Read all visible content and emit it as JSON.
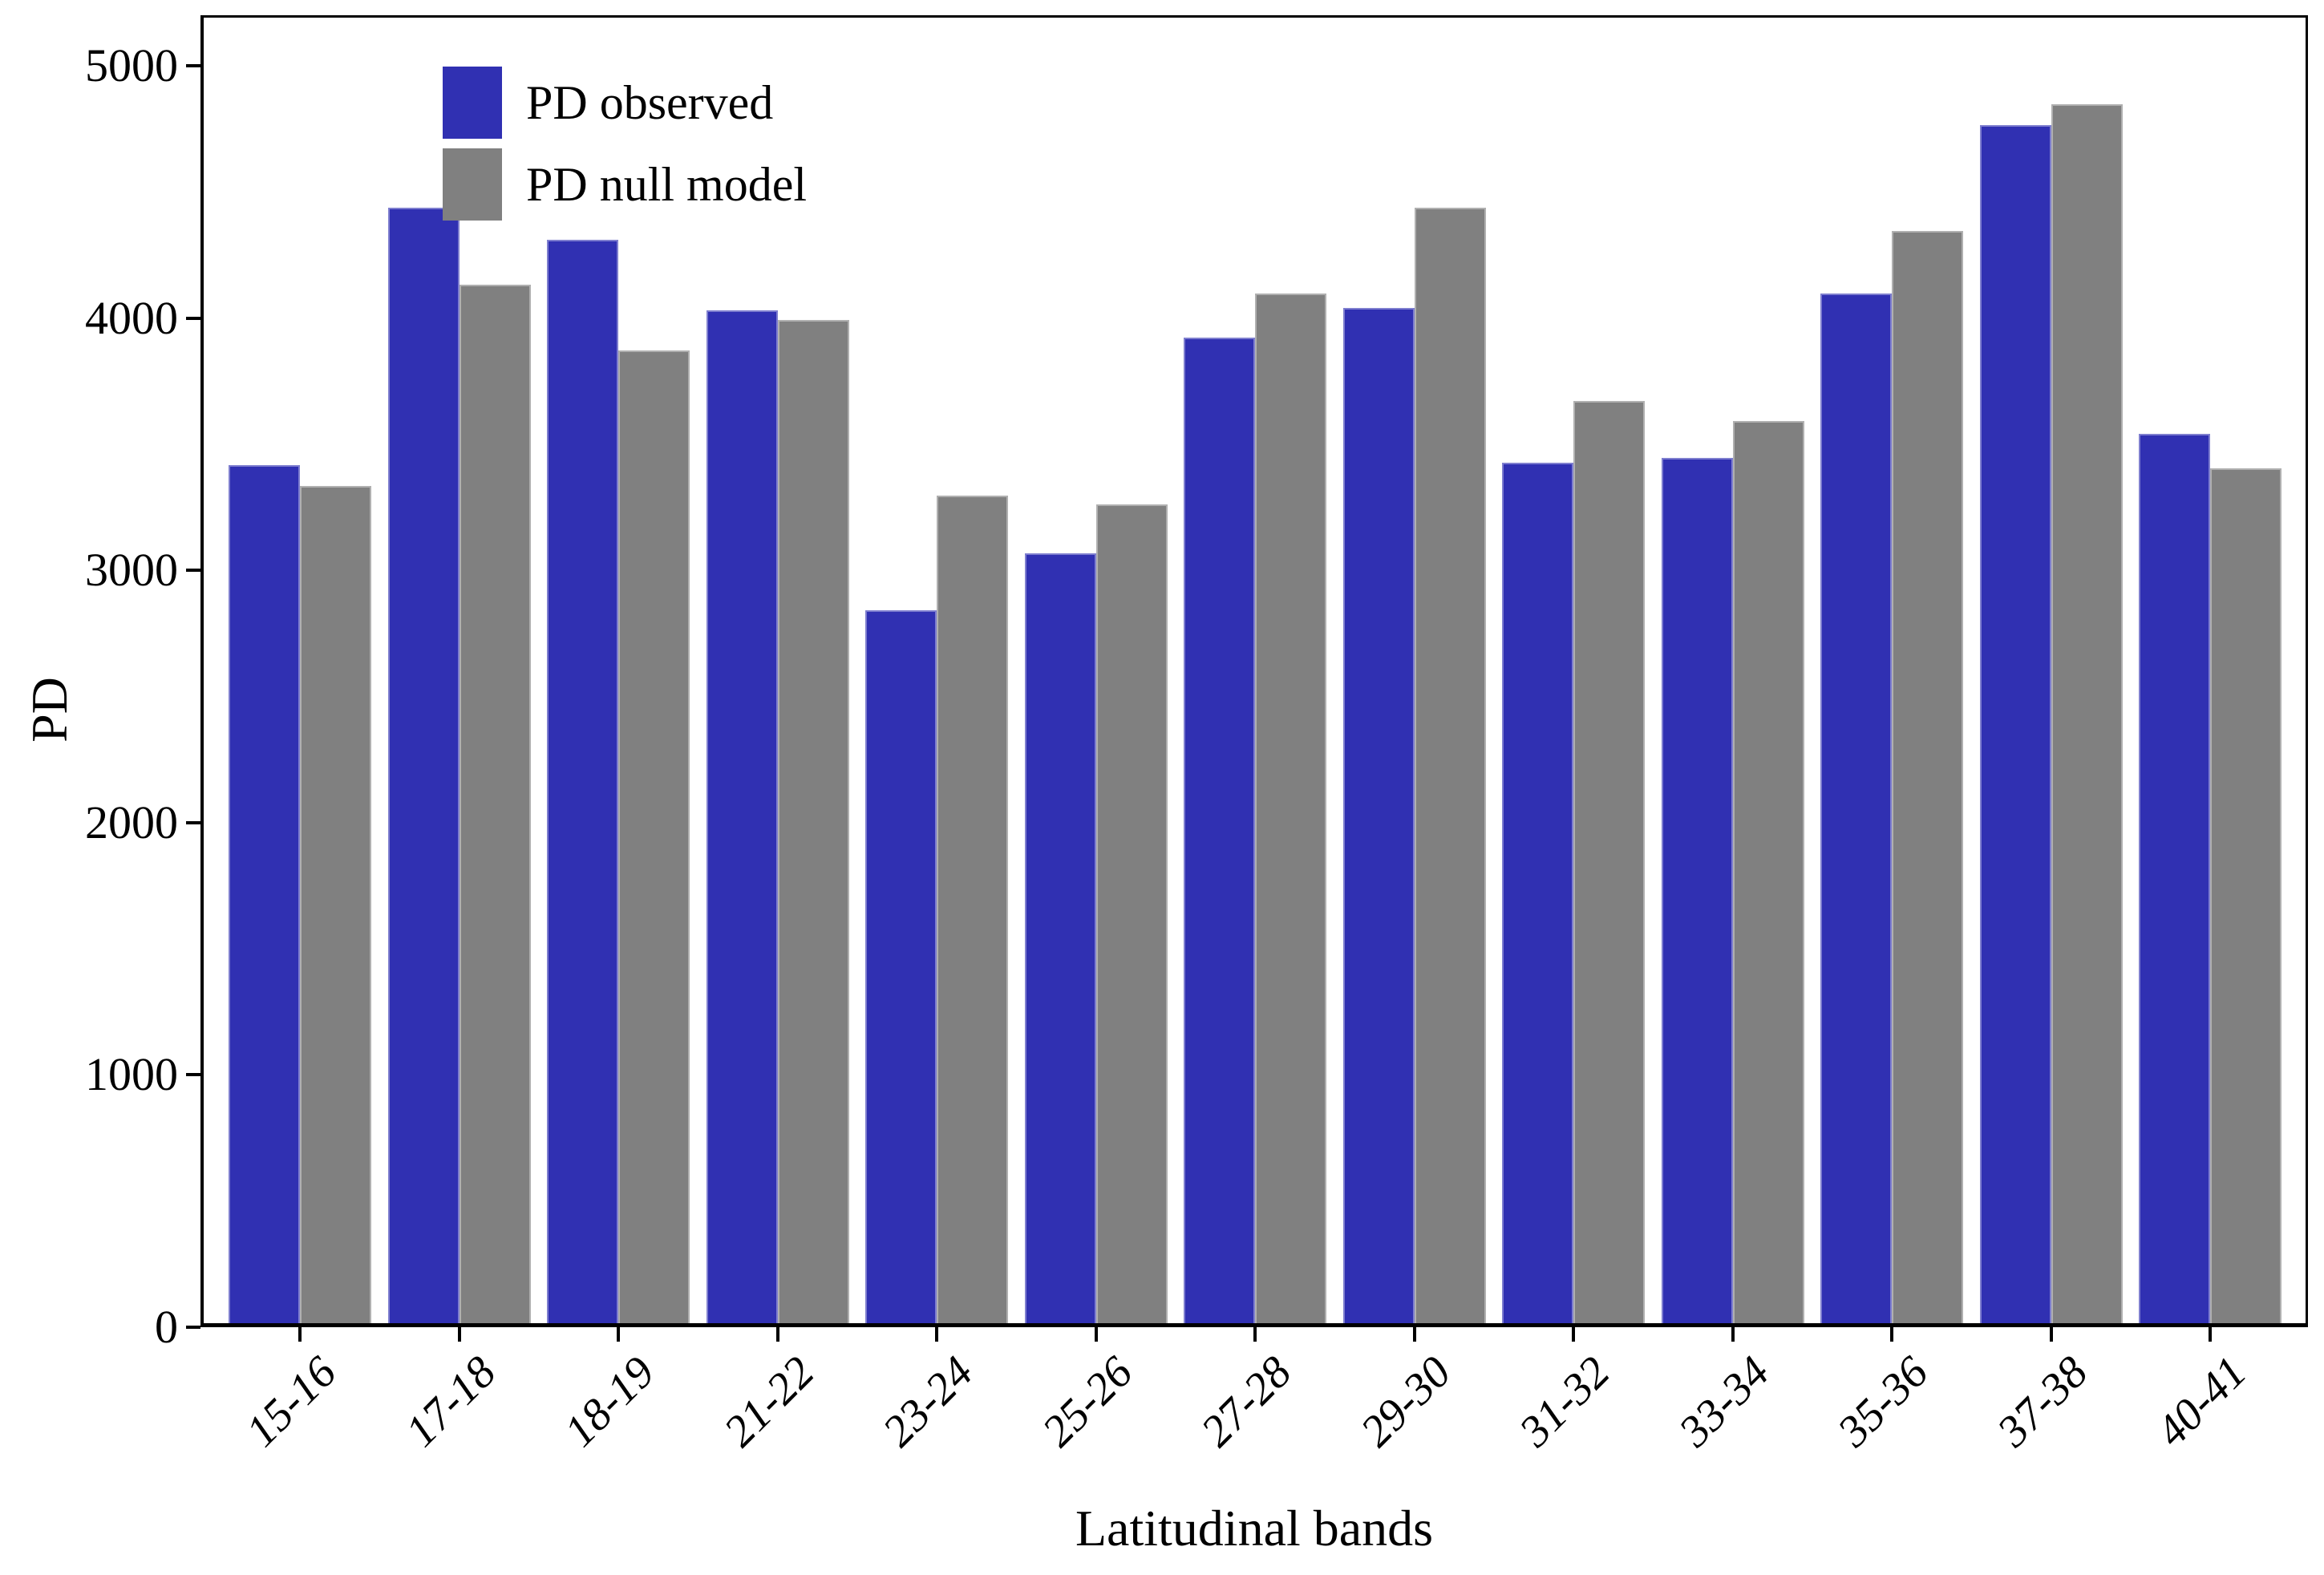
{
  "figure": {
    "background": "#ffffff",
    "text_color": "#000000"
  },
  "chart_data": {
    "type": "bar",
    "title": "",
    "xlabel": "Latitudinal bands",
    "ylabel": "PD",
    "categories": [
      "15-16",
      "17-18",
      "18-19",
      "21-22",
      "23-24",
      "25-26",
      "27-28",
      "29-30",
      "31-32",
      "33-34",
      "35-36",
      "37-38",
      "40-41"
    ],
    "series": [
      {
        "name": "PD observed",
        "color": "#3030B2",
        "values": [
          3400,
          4420,
          4295,
          4015,
          2825,
          3050,
          3905,
          4025,
          3410,
          3430,
          4080,
          4750,
          3525
        ]
      },
      {
        "name": "PD null model",
        "color": "#808080",
        "values": [
          3320,
          4115,
          3855,
          3975,
          3280,
          3245,
          4080,
          4420,
          3655,
          3575,
          4330,
          4830,
          3390
        ]
      }
    ],
    "ylim": [
      0,
      5000
    ],
    "yticks": [
      0,
      1000,
      2000,
      3000,
      4000,
      5000
    ],
    "grid": "off",
    "legend_position": "top-left-inside",
    "panel_border_color": "#000000"
  }
}
